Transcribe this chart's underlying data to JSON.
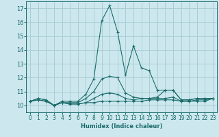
{
  "xlabel": "Humidex (Indice chaleur)",
  "xlim": [
    -0.5,
    23.5
  ],
  "ylim": [
    9.5,
    17.5
  ],
  "yticks": [
    10,
    11,
    12,
    13,
    14,
    15,
    16,
    17
  ],
  "xticks": [
    0,
    1,
    2,
    3,
    4,
    5,
    6,
    7,
    8,
    9,
    10,
    11,
    12,
    13,
    14,
    15,
    16,
    17,
    18,
    19,
    20,
    21,
    22,
    23
  ],
  "bg_color": "#cce8ee",
  "line_color": "#1a6b6b",
  "grid_color": "#aacdd6",
  "lines": [
    {
      "x": [
        0,
        1,
        2,
        3,
        4,
        5,
        6,
        7,
        8,
        9,
        10,
        11,
        12,
        13,
        14,
        15,
        16,
        17,
        18,
        19,
        20,
        21,
        22,
        23
      ],
      "y": [
        10.3,
        10.4,
        10.3,
        10.0,
        10.2,
        10.1,
        10.1,
        10.2,
        10.2,
        10.3,
        10.3,
        10.3,
        10.3,
        10.3,
        10.3,
        10.4,
        10.4,
        10.4,
        10.4,
        10.3,
        10.3,
        10.3,
        10.3,
        10.5
      ]
    },
    {
      "x": [
        0,
        1,
        2,
        3,
        4,
        5,
        6,
        7,
        8,
        9,
        10,
        11,
        12,
        13,
        14,
        15,
        16,
        17,
        18,
        19,
        20,
        21,
        22,
        23
      ],
      "y": [
        10.3,
        10.4,
        10.3,
        10.0,
        10.2,
        10.1,
        10.1,
        10.2,
        10.5,
        10.8,
        10.9,
        10.8,
        10.5,
        10.4,
        10.5,
        10.5,
        10.5,
        10.5,
        10.6,
        10.3,
        10.3,
        10.4,
        10.4,
        10.5
      ]
    },
    {
      "x": [
        0,
        1,
        2,
        3,
        4,
        5,
        6,
        7,
        8,
        9,
        10,
        11,
        12,
        13,
        14,
        15,
        16,
        17,
        18,
        19,
        20,
        21,
        22,
        23
      ],
      "y": [
        10.3,
        10.5,
        10.4,
        10.0,
        10.2,
        10.2,
        10.2,
        10.5,
        11.0,
        11.9,
        12.1,
        12.0,
        10.9,
        10.6,
        10.5,
        10.5,
        10.6,
        11.1,
        11.1,
        10.4,
        10.4,
        10.5,
        10.5,
        10.5
      ]
    },
    {
      "x": [
        0,
        1,
        2,
        3,
        4,
        5,
        6,
        7,
        8,
        9,
        10,
        11,
        12,
        13,
        14,
        15,
        16,
        17,
        18,
        19,
        20,
        21,
        22,
        23
      ],
      "y": [
        10.3,
        10.5,
        10.4,
        10.0,
        10.3,
        10.3,
        10.3,
        10.8,
        11.9,
        16.1,
        17.2,
        15.3,
        12.2,
        14.3,
        12.7,
        12.5,
        11.1,
        11.1,
        11.1,
        10.4,
        10.4,
        10.5,
        10.5,
        10.5
      ]
    }
  ]
}
